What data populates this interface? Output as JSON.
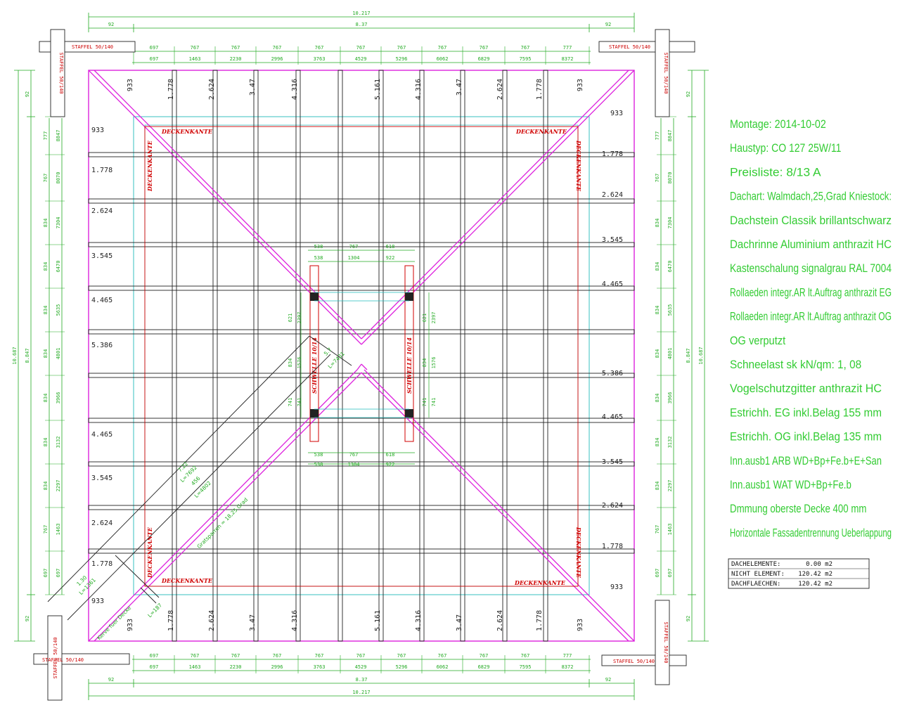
{
  "drawing": {
    "overall_top": "10.217",
    "overall_bottom": "10.217",
    "inner_top": "8.37",
    "inner_bottom": "8.37",
    "overall_left": "10.687",
    "inner_left": "8.847",
    "overall_right": "10.687",
    "inner_right": "8.847",
    "overhang": "92",
    "staffel_label": "STAFFEL 50/140",
    "rafter_spacing_row1": [
      "697",
      "767",
      "767",
      "767",
      "767",
      "767",
      "767",
      "767",
      "767",
      "767",
      "777"
    ],
    "rafter_spacing_row2": [
      "697",
      "1463",
      "2230",
      "2996",
      "3763",
      "4529",
      "5296",
      "6062",
      "6829",
      "7595",
      "8372"
    ],
    "left_spacing_row1": [
      "777",
      "767",
      "834",
      "834",
      "834",
      "834",
      "834",
      "834",
      "834",
      "767",
      "697"
    ],
    "left_spacing_row2": [
      "8847",
      "8070",
      "7304",
      "6470",
      "5635",
      "4801",
      "3966",
      "3132",
      "2297",
      "1463",
      "697"
    ],
    "rafter_labels_top": [
      "933",
      "1.778",
      "2.624",
      "3.47",
      "4.316",
      "5.161",
      "4.316",
      "3.47",
      "2.624",
      "1.778",
      "933"
    ],
    "rafter_labels_bottom": [
      "933",
      "1.778",
      "2.624",
      "3.47",
      "4.316",
      "5.161",
      "4.316",
      "3.47",
      "2.624",
      "1.778",
      "933"
    ],
    "rafter_labels_left": [
      "933",
      "1.778",
      "2.624",
      "3.545",
      "4.465",
      "5.386",
      "4.465",
      "3.545",
      "2.624",
      "1.778",
      "933"
    ],
    "rafter_labels_right": [
      "933",
      "1.778",
      "2.624",
      "3.545",
      "4.465",
      "5.386",
      "4.465",
      "3.545",
      "2.624",
      "1.778",
      "933"
    ],
    "deckenkante": "DECKENKANTE",
    "schwelle": "SCHWELLE 10/14",
    "inner_dims_h1": [
      "538",
      "767",
      "618"
    ],
    "inner_dims_h2": [
      "538",
      "1304",
      "922"
    ],
    "inner_dims_v_upper": [
      "621",
      "2397"
    ],
    "inner_dims_v_mid": [
      "834",
      "1576"
    ],
    "inner_dims_v_lower": [
      "741",
      "741"
    ],
    "diag_len1": "L=7431",
    "diag_len2": "L=7692",
    "diag_len3": "L=4802",
    "diag_val1": "5.7",
    "diag_val2": "7.22",
    "diag_val3": "456",
    "gratsparren": "Gratsparren = 18,25 Grad",
    "kerve": "Kerve fuer Decke",
    "small_len1": "1.30",
    "small_len2": "L=1361",
    "small_len3": "L=187"
  },
  "info": {
    "lines": [
      "Montage: 2014-10-02",
      "Haustyp: CO 127 25W/11",
      "Preisliste: 8/13 A",
      "Dachart: Walmdach,25,Grad Kniestock:",
      "Dachstein Classik brillantschwarz",
      "Dachrinne Aluminium anthrazit HC",
      "Kastenschalung signalgrau RAL 7004",
      "Rollaeden integr.AR lt.Auftrag anthrazit EG",
      "Rollaeden integr.AR lt.Auftrag anthrazit OG",
      "OG verputzt",
      "Schneelast sk kN/qm: 1, 08",
      "Vogelschutzgitter anthrazit HC",
      "Estrichh. EG inkl.Belag 155 mm",
      "Estrichh. OG inkl.Belag 135 mm",
      "Inn.ausb1 ARB WD+Bp+Fe.b+E+San",
      "Inn.ausb1 WAT WD+Bp+Fe.b",
      "Dmmung oberste Decke 400 mm",
      "Horizontale Fassadentrennung Ueberlappung"
    ]
  },
  "area_table": {
    "rows": [
      {
        "label": "DACHELEMENTE:",
        "value": "0.00 m2"
      },
      {
        "label": "NICHT ELEMENT:",
        "value": "120.42 m2"
      },
      {
        "label": "DACHFLAECHEN:",
        "value": "120.42 m2"
      }
    ]
  },
  "colors": {
    "dimension": "#22aa22",
    "hip": "#dd22dd",
    "outline": "#dd22dd",
    "rafter": "#222222",
    "guide": "#22bbbb",
    "red": "#d00000"
  }
}
